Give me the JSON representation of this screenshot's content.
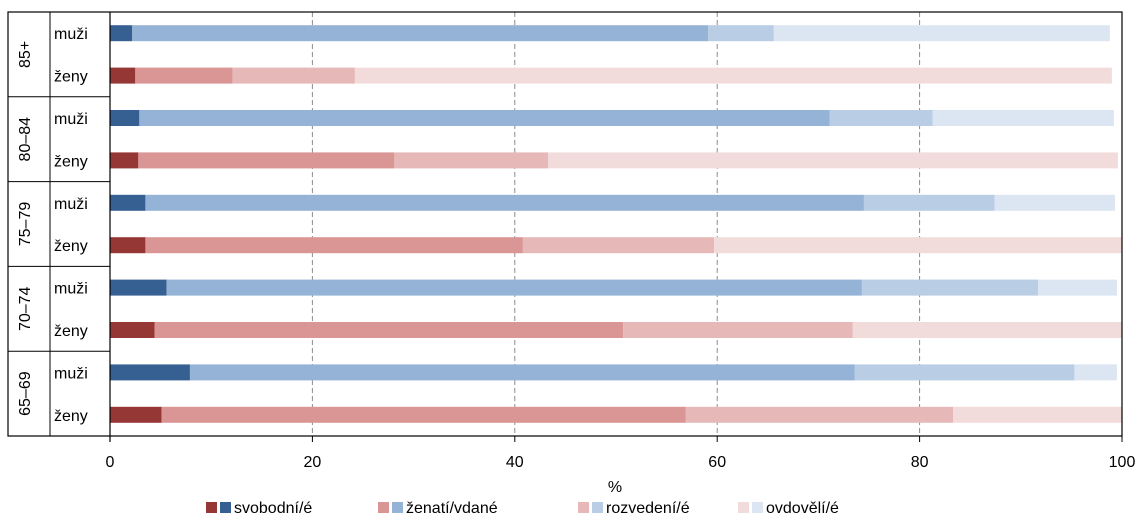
{
  "chart_data": {
    "type": "bar",
    "orientation": "horizontal",
    "stacked": true,
    "xlabel": "%",
    "xlim": [
      0,
      100
    ],
    "xticks": [
      "0",
      "20",
      "40",
      "60",
      "80",
      "100"
    ],
    "grid": "vertical dashed",
    "legend_position": "bottom",
    "groups": [
      {
        "label": "85+",
        "rows": [
          {
            "label": "muži",
            "sex": "m",
            "values": [
              2.2,
              56.9,
              6.5,
              33.2
            ]
          },
          {
            "label": "ženy",
            "sex": "f",
            "values": [
              2.5,
              9.6,
              12.1,
              74.8
            ]
          }
        ]
      },
      {
        "label": "80–84",
        "rows": [
          {
            "label": "muži",
            "sex": "m",
            "values": [
              2.9,
              68.2,
              10.2,
              17.9
            ]
          },
          {
            "label": "ženy",
            "sex": "f",
            "values": [
              2.8,
              25.3,
              15.2,
              56.3
            ]
          }
        ]
      },
      {
        "label": "75–79",
        "rows": [
          {
            "label": "muži",
            "sex": "m",
            "values": [
              3.5,
              71.0,
              12.9,
              11.9
            ]
          },
          {
            "label": "ženy",
            "sex": "f",
            "values": [
              3.5,
              37.3,
              18.9,
              40.3
            ]
          }
        ]
      },
      {
        "label": "70–74",
        "rows": [
          {
            "label": "muži",
            "sex": "m",
            "values": [
              5.6,
              68.7,
              17.4,
              7.8
            ]
          },
          {
            "label": "ženy",
            "sex": "f",
            "values": [
              4.4,
              46.3,
              22.7,
              26.6
            ]
          }
        ]
      },
      {
        "label": "65–69",
        "rows": [
          {
            "label": "muži",
            "sex": "m",
            "values": [
              7.9,
              65.7,
              21.7,
              4.2
            ]
          },
          {
            "label": "ženy",
            "sex": "f",
            "values": [
              5.1,
              51.8,
              26.4,
              16.7
            ]
          }
        ]
      }
    ],
    "legend": [
      {
        "label": "svobodní/é",
        "color_f": "#953735",
        "color_m": "#376092"
      },
      {
        "label": "ženatí/vdané",
        "color_f": "#d99694",
        "color_m": "#95b3d7"
      },
      {
        "label": "rozvedení/é",
        "color_f": "#e6b9b8",
        "color_m": "#b9cde5"
      },
      {
        "label": "ovdovělí/é",
        "color_f": "#f2dcdb",
        "color_m": "#dce6f2"
      }
    ]
  }
}
